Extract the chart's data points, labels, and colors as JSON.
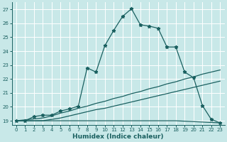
{
  "xlabel": "Humidex (Indice chaleur)",
  "bg_color": "#c8e8e8",
  "line_color": "#1a6060",
  "grid_color": "#ffffff",
  "xlim": [
    -0.5,
    23.5
  ],
  "ylim": [
    18.7,
    27.5
  ],
  "xticks": [
    0,
    1,
    2,
    3,
    4,
    5,
    6,
    7,
    8,
    9,
    10,
    11,
    12,
    13,
    14,
    15,
    16,
    17,
    18,
    19,
    20,
    21,
    22,
    23
  ],
  "yticks": [
    19,
    20,
    21,
    22,
    23,
    24,
    25,
    26,
    27
  ],
  "curve1_x": [
    0,
    1,
    2,
    3,
    4,
    5,
    6,
    7,
    8,
    9,
    10,
    11,
    12,
    13,
    14,
    15,
    16,
    17,
    18,
    19,
    20,
    21,
    22,
    23
  ],
  "curve1_y": [
    19.0,
    19.0,
    19.3,
    19.4,
    19.4,
    19.7,
    19.85,
    20.05,
    22.8,
    22.5,
    24.4,
    25.5,
    26.5,
    27.05,
    25.9,
    25.8,
    25.65,
    24.3,
    24.3,
    22.5,
    22.1,
    20.1,
    19.1,
    18.85
  ],
  "curve2_x": [
    0,
    3,
    4,
    5,
    6,
    7,
    8,
    9,
    10,
    11,
    12,
    13,
    14,
    15,
    16,
    17,
    18,
    19,
    20,
    21,
    22,
    23
  ],
  "curve2_y": [
    19.0,
    19.2,
    19.35,
    19.55,
    19.7,
    19.9,
    20.05,
    20.25,
    20.4,
    20.6,
    20.75,
    20.95,
    21.1,
    21.3,
    21.45,
    21.65,
    21.8,
    22.0,
    22.15,
    22.35,
    22.5,
    22.65
  ],
  "curve3_x": [
    0,
    3,
    4,
    5,
    6,
    7,
    8,
    9,
    10,
    11,
    12,
    13,
    14,
    15,
    16,
    17,
    18,
    19,
    20,
    21,
    22,
    23
  ],
  "curve3_y": [
    19.0,
    19.0,
    19.1,
    19.2,
    19.35,
    19.5,
    19.65,
    19.8,
    19.9,
    20.05,
    20.2,
    20.35,
    20.5,
    20.65,
    20.8,
    20.95,
    21.1,
    21.25,
    21.4,
    21.55,
    21.7,
    21.85
  ],
  "curve4_x": [
    0,
    18,
    23
  ],
  "curve4_y": [
    19.0,
    19.0,
    18.85
  ]
}
